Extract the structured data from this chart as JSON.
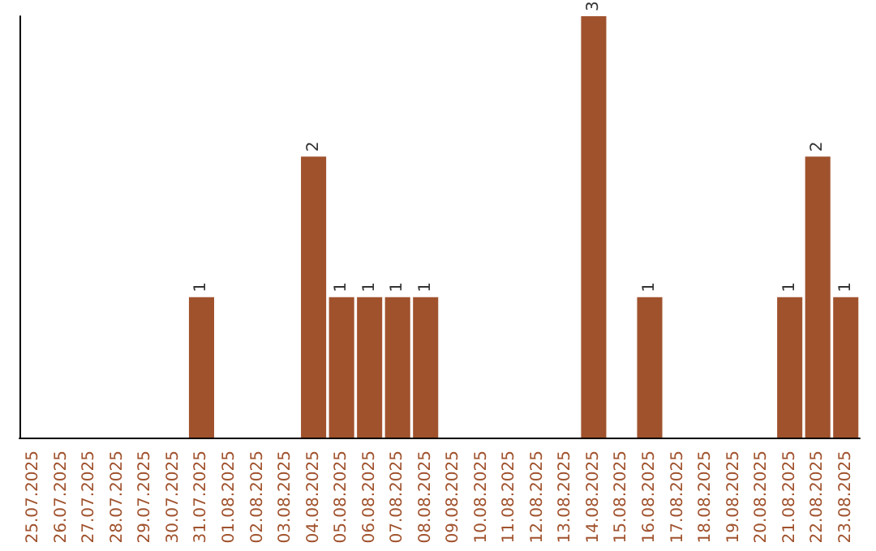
{
  "chart_data": {
    "type": "bar",
    "categories": [
      "25.07.2025",
      "26.07.2025",
      "27.07.2025",
      "28.07.2025",
      "29.07.2025",
      "30.07.2025",
      "31.07.2025",
      "01.08.2025",
      "02.08.2025",
      "03.08.2025",
      "04.08.2025",
      "05.08.2025",
      "06.08.2025",
      "07.08.2025",
      "08.08.2025",
      "09.08.2025",
      "10.08.2025",
      "11.08.2025",
      "12.08.2025",
      "13.08.2025",
      "14.08.2025",
      "15.08.2025",
      "16.08.2025",
      "17.08.2025",
      "18.08.2025",
      "19.08.2025",
      "20.08.2025",
      "21.08.2025",
      "22.08.2025",
      "23.08.2025"
    ],
    "values": [
      0,
      0,
      0,
      0,
      0,
      0,
      1,
      0,
      0,
      0,
      2,
      1,
      1,
      1,
      1,
      0,
      0,
      0,
      0,
      0,
      3,
      0,
      1,
      0,
      0,
      0,
      0,
      1,
      2,
      1
    ],
    "value_labels": [
      null,
      null,
      null,
      null,
      null,
      null,
      "1",
      null,
      null,
      null,
      "2",
      "1",
      "1",
      "1",
      "1",
      null,
      null,
      null,
      null,
      null,
      "3",
      null,
      "1",
      null,
      null,
      null,
      null,
      "1",
      "2",
      "1"
    ],
    "color": "#a0522d"
  }
}
